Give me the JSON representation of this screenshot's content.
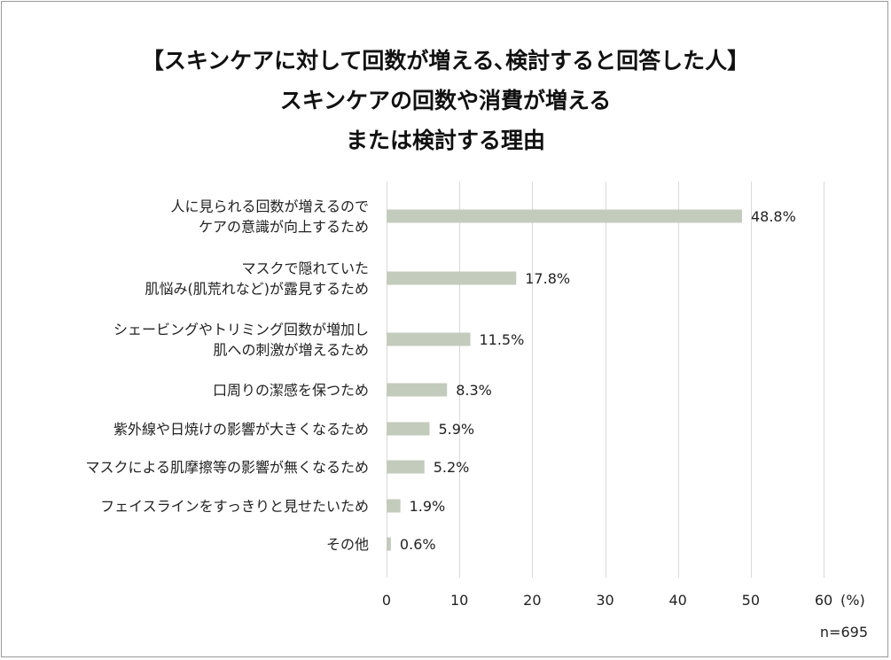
{
  "chart_data": {
    "type": "bar",
    "orientation": "horizontal",
    "title_lines": [
      "【スキンケアに対して回数が増える､検討すると回答した人】",
      "スキンケアの回数や消費が増える",
      "または検討する理由"
    ],
    "categories": [
      [
        "人に見られる回数が増えるので",
        "ケアの意識が向上するため"
      ],
      [
        "マスクで隠れていた",
        "肌悩み(肌荒れなど)が露見するため"
      ],
      [
        "シェービングやトリミング回数が増加し",
        "肌への刺激が増えるため"
      ],
      [
        "口周りの潔感を保つため"
      ],
      [
        "紫外線や日焼けの影響が大きくなるため"
      ],
      [
        "マスクによる肌摩擦等の影響が無くなるため"
      ],
      [
        "フェイスラインをすっきりと見せたいため"
      ],
      [
        "その他"
      ]
    ],
    "values": [
      48.8,
      17.8,
      11.5,
      8.3,
      5.9,
      5.2,
      1.9,
      0.6
    ],
    "value_labels": [
      "48.8%",
      "17.8%",
      "11.5%",
      "8.3%",
      "5.9%",
      "5.2%",
      "1.9%",
      "0.6%"
    ],
    "xlim": [
      0,
      60
    ],
    "xticks": [
      0,
      10,
      20,
      30,
      40,
      50,
      60
    ],
    "x_unit": "(%)",
    "grid": true,
    "bar_color": "#c3cbbd",
    "grid_color": "#d9d9d9",
    "note": "n=695"
  }
}
